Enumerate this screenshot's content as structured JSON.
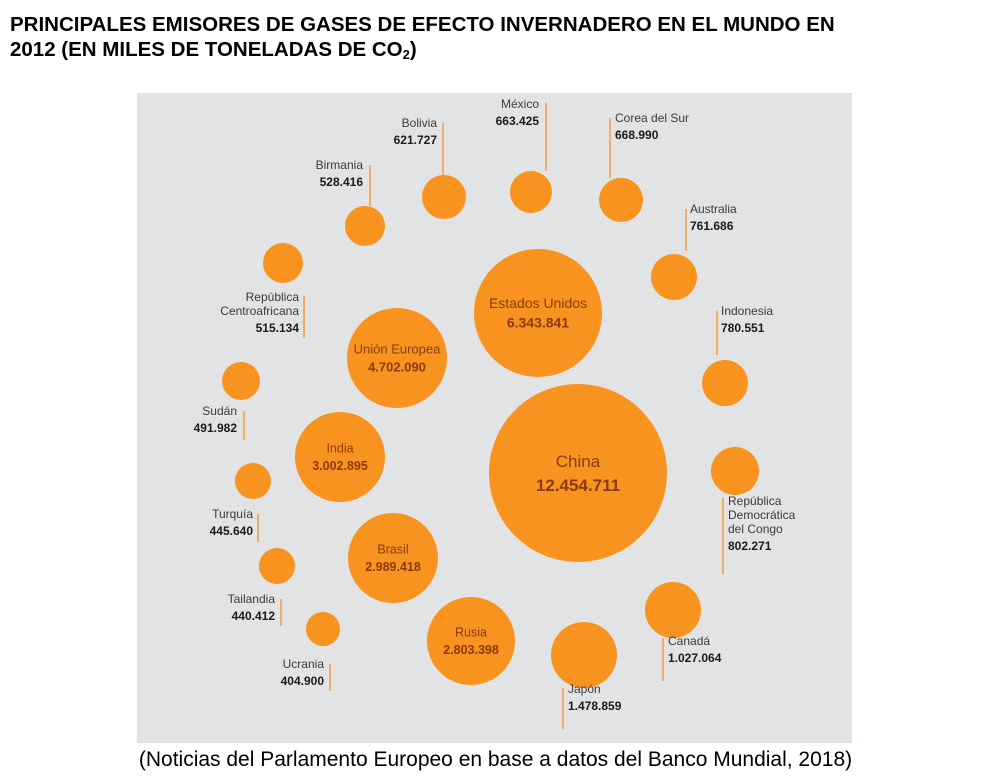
{
  "header": {
    "title_line1": "PRINCIPALES EMISORES DE GASES DE EFECTO INVERNADERO EN EL MUNDO EN",
    "title_line2_pre": "2012 (EN MILES DE TONELADAS DE CO",
    "title_sub": "2",
    "title_line2_post": ")"
  },
  "footer": {
    "source": "(Noticias del Parlamento Europeo en base a  datos del Banco Mundial, 2018)"
  },
  "colors": {
    "bubble": "#F7931E",
    "bubble_text": "#8B3A10",
    "label_text": "#3a3a3a",
    "background": "#e6e7e8"
  },
  "chart_data": {
    "type": "bubble",
    "title": "PRINCIPALES EMISORES DE GASES DE EFECTO INVERNADERO EN EL MUNDO EN 2012 (EN MILES DE TONELADAS DE CO2)",
    "unit": "miles de toneladas de CO2",
    "series": [
      {
        "name": "China",
        "value": 12454711,
        "display": "12.454.711"
      },
      {
        "name": "Estados Unidos",
        "value": 6343841,
        "display": "6.343.841"
      },
      {
        "name": "Unión Europea",
        "value": 4702090,
        "display": "4.702.090"
      },
      {
        "name": "India",
        "value": 3002895,
        "display": "3.002.895"
      },
      {
        "name": "Brasil",
        "value": 2989418,
        "display": "2.989.418"
      },
      {
        "name": "Rusia",
        "value": 2803398,
        "display": "2.803.398"
      },
      {
        "name": "Japón",
        "value": 1478859,
        "display": "1.478.859"
      },
      {
        "name": "Canadá",
        "value": 1027064,
        "display": "1.027.064"
      },
      {
        "name": "República Democrática del Congo",
        "value": 802271,
        "display": "802.271"
      },
      {
        "name": "Indonesia",
        "value": 780551,
        "display": "780.551"
      },
      {
        "name": "Australia",
        "value": 761686,
        "display": "761.686"
      },
      {
        "name": "Corea del Sur",
        "value": 668990,
        "display": "668.990"
      },
      {
        "name": "México",
        "value": 663425,
        "display": "663.425"
      },
      {
        "name": "Bolivia",
        "value": 621727,
        "display": "621.727"
      },
      {
        "name": "Birmania",
        "value": 528416,
        "display": "528.416"
      },
      {
        "name": "República Centroafricana",
        "value": 515134,
        "display": "515.134"
      },
      {
        "name": "Sudán",
        "value": 491982,
        "display": "491.982"
      },
      {
        "name": "Turquía",
        "value": 445640,
        "display": "445.640"
      },
      {
        "name": "Tailandia",
        "value": 440412,
        "display": "440.412"
      },
      {
        "name": "Ucrania",
        "value": 404900,
        "display": "404.900"
      }
    ]
  }
}
